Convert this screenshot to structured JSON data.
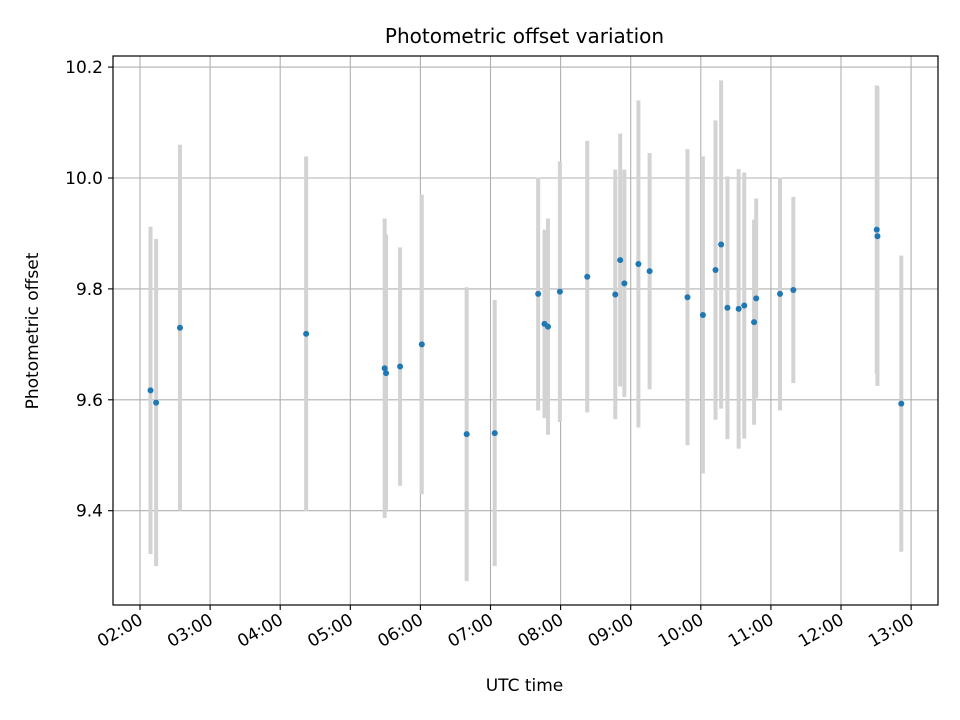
{
  "chart_data": {
    "type": "scatter",
    "title": "Photometric offset variation",
    "xlabel": "UTC time",
    "ylabel": "Photometric offset",
    "x_unit": "hours UTC",
    "xlim": [
      1.9,
      13.4
    ],
    "ylim": [
      9.23,
      10.22
    ],
    "xticks": [
      2,
      3,
      4,
      5,
      6,
      7,
      8,
      9,
      10,
      11,
      12,
      13
    ],
    "xtick_labels": [
      "02:00",
      "03:00",
      "04:00",
      "05:00",
      "06:00",
      "07:00",
      "08:00",
      "09:00",
      "10:00",
      "11:00",
      "12:00",
      "13:00"
    ],
    "yticks": [
      9.4,
      9.6,
      9.8,
      10.0,
      10.2
    ],
    "ytick_labels": [
      "9.4",
      "9.6",
      "9.8",
      "10.0",
      "10.2"
    ],
    "grid": true,
    "marker_color": "#1f77b4",
    "errorbar_color": "#d3d3d3",
    "points": [
      {
        "x": 2.15,
        "y": 9.617,
        "err": 0.295
      },
      {
        "x": 2.23,
        "y": 9.595,
        "err": 0.295
      },
      {
        "x": 2.57,
        "y": 9.73,
        "err": 0.33
      },
      {
        "x": 4.37,
        "y": 9.719,
        "err": 0.32
      },
      {
        "x": 5.49,
        "y": 9.657,
        "err": 0.27
      },
      {
        "x": 5.51,
        "y": 9.648,
        "err": 0.25
      },
      {
        "x": 5.71,
        "y": 9.66,
        "err": 0.215
      },
      {
        "x": 6.02,
        "y": 9.7,
        "err": 0.27
      },
      {
        "x": 6.66,
        "y": 9.538,
        "err": 0.265
      },
      {
        "x": 7.06,
        "y": 9.54,
        "err": 0.24
      },
      {
        "x": 7.68,
        "y": 9.791,
        "err": 0.21
      },
      {
        "x": 7.77,
        "y": 9.737,
        "err": 0.17
      },
      {
        "x": 7.82,
        "y": 9.732,
        "err": 0.195
      },
      {
        "x": 7.99,
        "y": 9.795,
        "err": 0.235
      },
      {
        "x": 8.38,
        "y": 9.822,
        "err": 0.245
      },
      {
        "x": 8.78,
        "y": 9.79,
        "err": 0.225
      },
      {
        "x": 8.85,
        "y": 9.852,
        "err": 0.228
      },
      {
        "x": 8.91,
        "y": 9.81,
        "err": 0.205
      },
      {
        "x": 9.11,
        "y": 9.845,
        "err": 0.295
      },
      {
        "x": 9.27,
        "y": 9.832,
        "err": 0.213
      },
      {
        "x": 9.81,
        "y": 9.785,
        "err": 0.267
      },
      {
        "x": 10.03,
        "y": 9.753,
        "err": 0.286
      },
      {
        "x": 10.21,
        "y": 9.834,
        "err": 0.27
      },
      {
        "x": 10.29,
        "y": 9.88,
        "err": 0.296
      },
      {
        "x": 10.38,
        "y": 9.766,
        "err": 0.237
      },
      {
        "x": 10.54,
        "y": 9.764,
        "err": 0.252
      },
      {
        "x": 10.62,
        "y": 9.77,
        "err": 0.24
      },
      {
        "x": 10.76,
        "y": 9.74,
        "err": 0.185
      },
      {
        "x": 10.79,
        "y": 9.783,
        "err": 0.18
      },
      {
        "x": 11.13,
        "y": 9.791,
        "err": 0.21
      },
      {
        "x": 11.32,
        "y": 9.798,
        "err": 0.168
      },
      {
        "x": 12.51,
        "y": 9.907,
        "err": 0.26
      },
      {
        "x": 12.52,
        "y": 9.895,
        "err": 0.27
      },
      {
        "x": 12.86,
        "y": 9.593,
        "err": 0.267
      }
    ]
  }
}
